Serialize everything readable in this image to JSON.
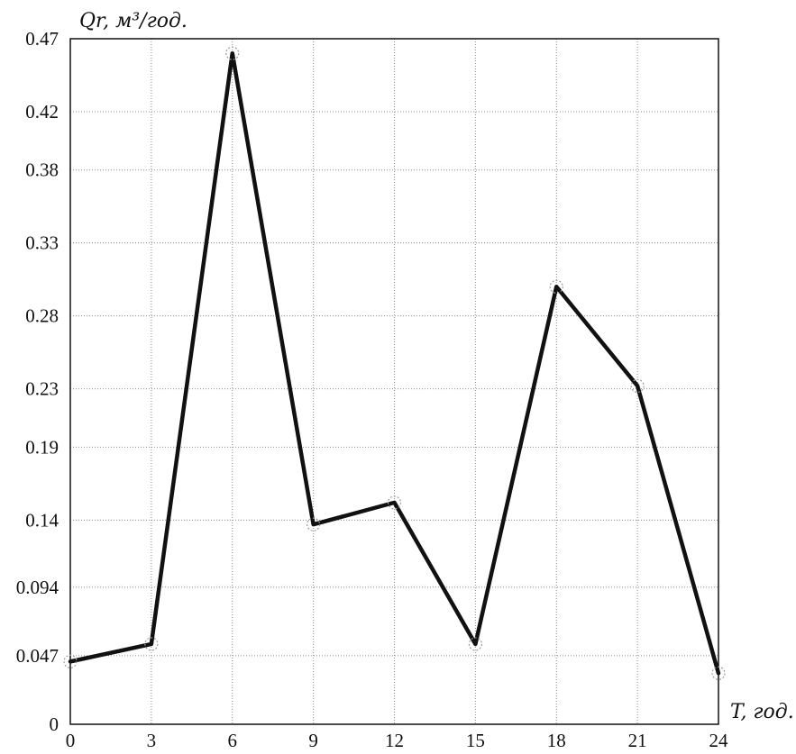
{
  "chart_data": {
    "type": "line",
    "ylabel": "Qr, м³/год.",
    "xlabel": "T, год.",
    "x": [
      0,
      3,
      6,
      9,
      12,
      15,
      18,
      21,
      24
    ],
    "y": [
      0.043,
      0.055,
      0.46,
      0.137,
      0.152,
      0.055,
      0.3,
      0.232,
      0.035
    ],
    "xticks": [
      "0",
      "3",
      "6",
      "9",
      "12",
      "15",
      "18",
      "21",
      "24"
    ],
    "yticks": [
      {
        "value": 0,
        "label": "0"
      },
      {
        "value": 0.047,
        "label": "0.047"
      },
      {
        "value": 0.094,
        "label": "0.094"
      },
      {
        "value": 0.14,
        "label": "0.14"
      },
      {
        "value": 0.19,
        "label": "0.19"
      },
      {
        "value": 0.23,
        "label": "0.23"
      },
      {
        "value": 0.28,
        "label": "0.28"
      },
      {
        "value": 0.33,
        "label": "0.33"
      },
      {
        "value": 0.38,
        "label": "0.38"
      },
      {
        "value": 0.42,
        "label": "0.42"
      },
      {
        "value": 0.47,
        "label": "0.47"
      }
    ],
    "xlim": [
      0,
      24
    ],
    "ylim": [
      0,
      0.47
    ],
    "grid": true,
    "line_color": "#111111",
    "marker": "dashed-circle"
  }
}
